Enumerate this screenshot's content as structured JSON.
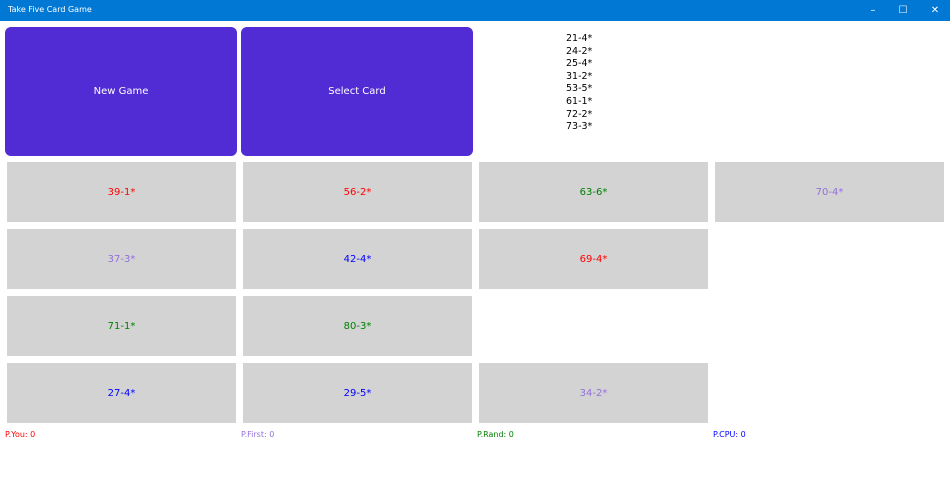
{
  "window": {
    "title": "Take Five Card Game",
    "minimize": "–",
    "maximize": "☐",
    "close": "✕"
  },
  "buttons": {
    "new_game": "New Game",
    "select_card": "Select Card"
  },
  "hand": [
    "21-4*",
    "24-2*",
    "25-4*",
    "31-2*",
    "53-5*",
    "61-1*",
    "72-2*",
    "73-3*"
  ],
  "colors": {
    "red": "#ff0000",
    "purple": "#9370db",
    "green": "#008000",
    "blue": "#0000ff",
    "button": "#512bd4",
    "titlebar": "#0078d4"
  },
  "rows": [
    [
      {
        "label": "39-1*",
        "color": "red"
      },
      {
        "label": "56-2*",
        "color": "red"
      },
      {
        "label": "63-6*",
        "color": "green"
      },
      {
        "label": "70-4*",
        "color": "purple"
      }
    ],
    [
      {
        "label": "37-3*",
        "color": "purple"
      },
      {
        "label": "42-4*",
        "color": "blue"
      },
      {
        "label": "69-4*",
        "color": "red"
      }
    ],
    [
      {
        "label": "71-1*",
        "color": "green"
      },
      {
        "label": "80-3*",
        "color": "green"
      }
    ],
    [
      {
        "label": "27-4*",
        "color": "blue"
      },
      {
        "label": "29-5*",
        "color": "blue"
      },
      {
        "label": "34-2*",
        "color": "purple"
      }
    ]
  ],
  "scores": [
    {
      "label": "P.You: 0",
      "color": "red"
    },
    {
      "label": "P.First: 0",
      "color": "purple"
    },
    {
      "label": "P.Rand: 0",
      "color": "green"
    },
    {
      "label": "P.CPU: 0",
      "color": "blue"
    }
  ]
}
